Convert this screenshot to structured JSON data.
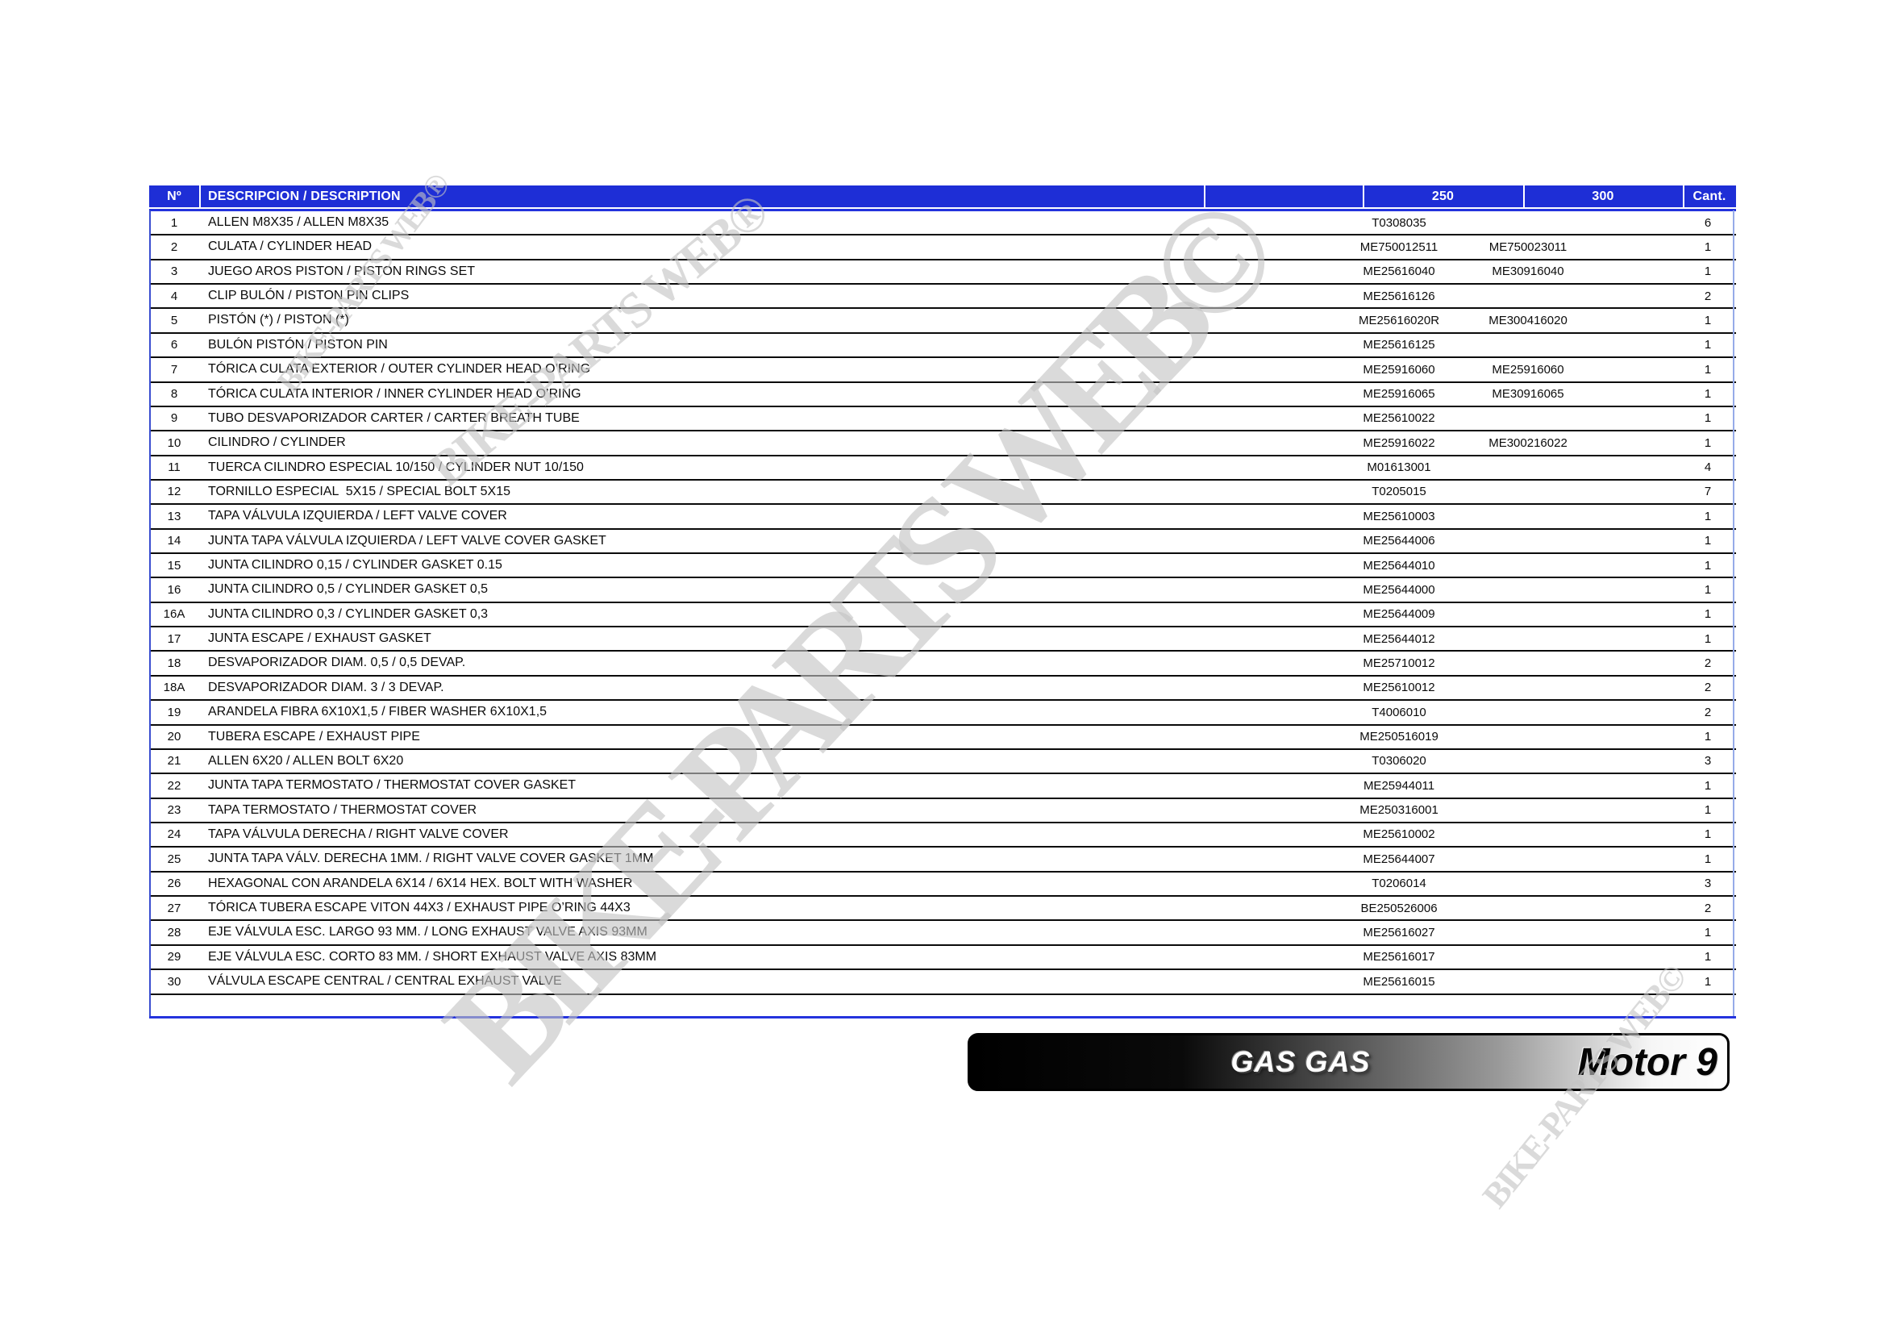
{
  "header": {
    "col_num": "Nº",
    "col_desc": "DESCRIPCION / DESCRIPTION",
    "col_250": "250",
    "col_300": "300",
    "col_qty": "Cant."
  },
  "rows": [
    {
      "num": "1",
      "desc": "ALLEN M8X35 / ALLEN M8X35",
      "p250": "T0308035",
      "p300": "",
      "qty": "6"
    },
    {
      "num": "2",
      "desc": "CULATA / CYLINDER HEAD",
      "p250": "ME750012511",
      "p300": "ME750023011",
      "qty": "1"
    },
    {
      "num": "3",
      "desc": "JUEGO AROS PISTON / PISTON RINGS SET",
      "p250": "ME25616040",
      "p300": "ME30916040",
      "qty": "1"
    },
    {
      "num": "4",
      "desc": "CLIP BULÓN / PISTON PIN CLIPS",
      "p250": "ME25616126",
      "p300": "",
      "qty": "2"
    },
    {
      "num": "5",
      "desc": "PISTÓN (*) / PISTON (*)",
      "p250": "ME25616020R",
      "p300": "ME300416020",
      "qty": "1"
    },
    {
      "num": "6",
      "desc": "BULÓN PISTÓN / PISTON PIN",
      "p250": "ME25616125",
      "p300": "",
      "qty": "1"
    },
    {
      "num": "7",
      "desc": "TÓRICA CULATA EXTERIOR / OUTER CYLINDER HEAD O’RING",
      "p250": "ME25916060",
      "p300": "ME25916060",
      "qty": "1"
    },
    {
      "num": "8",
      "desc": "TÓRICA CULATA INTERIOR / INNER CYLINDER HEAD O’RING",
      "p250": "ME25916065",
      "p300": "ME30916065",
      "qty": "1"
    },
    {
      "num": "9",
      "desc": "TUBO DESVAPORIZADOR CARTER / CARTER BREATH TUBE",
      "p250": "ME25610022",
      "p300": "",
      "qty": "1"
    },
    {
      "num": "10",
      "desc": "CILINDRO / CYLINDER",
      "p250": "ME25916022",
      "p300": "ME300216022",
      "qty": "1"
    },
    {
      "num": "11",
      "desc": "TUERCA CILINDRO ESPECIAL 10/150 / CYLINDER NUT 10/150",
      "p250": "M01613001",
      "p300": "",
      "qty": "4"
    },
    {
      "num": "12",
      "desc": "TORNILLO ESPECIAL  5X15 / SPECIAL BOLT 5X15",
      "p250": "T0205015",
      "p300": "",
      "qty": "7"
    },
    {
      "num": "13",
      "desc": "TAPA VÁLVULA IZQUIERDA / LEFT VALVE COVER",
      "p250": "ME25610003",
      "p300": "",
      "qty": "1"
    },
    {
      "num": "14",
      "desc": "JUNTA TAPA VÁLVULA IZQUIERDA / LEFT VALVE COVER GASKET",
      "p250": "ME25644006",
      "p300": "",
      "qty": "1"
    },
    {
      "num": "15",
      "desc": "JUNTA CILINDRO 0,15 / CYLINDER GASKET 0.15",
      "p250": "ME25644010",
      "p300": "",
      "qty": "1"
    },
    {
      "num": "16",
      "desc": "JUNTA CILINDRO 0,5 / CYLINDER GASKET 0,5",
      "p250": "ME25644000",
      "p300": "",
      "qty": "1"
    },
    {
      "num": "16A",
      "desc": "JUNTA CILINDRO 0,3 / CYLINDER GASKET 0,3",
      "p250": "ME25644009",
      "p300": "",
      "qty": "1"
    },
    {
      "num": "17",
      "desc": "JUNTA ESCAPE / EXHAUST GASKET",
      "p250": "ME25644012",
      "p300": "",
      "qty": "1"
    },
    {
      "num": "18",
      "desc": "DESVAPORIZADOR DIAM. 0,5 / 0,5 DEVAP.",
      "p250": "ME25710012",
      "p300": "",
      "qty": "2"
    },
    {
      "num": "18A",
      "desc": "DESVAPORIZADOR DIAM. 3 / 3 DEVAP.",
      "p250": "ME25610012",
      "p300": "",
      "qty": "2"
    },
    {
      "num": "19",
      "desc": "ARANDELA FIBRA 6X10X1,5 / FIBER WASHER 6X10X1,5",
      "p250": "T4006010",
      "p300": "",
      "qty": "2"
    },
    {
      "num": "20",
      "desc": "TUBERA ESCAPE / EXHAUST PIPE",
      "p250": "ME250516019",
      "p300": "",
      "qty": "1"
    },
    {
      "num": "21",
      "desc": "ALLEN 6X20 / ALLEN BOLT 6X20",
      "p250": "T0306020",
      "p300": "",
      "qty": "3"
    },
    {
      "num": "22",
      "desc": "JUNTA TAPA TERMOSTATO / THERMOSTAT COVER GASKET",
      "p250": "ME25944011",
      "p300": "",
      "qty": "1"
    },
    {
      "num": "23",
      "desc": "TAPA TERMOSTATO / THERMOSTAT COVER",
      "p250": "ME250316001",
      "p300": "",
      "qty": "1"
    },
    {
      "num": "24",
      "desc": "TAPA VÁLVULA DERECHA / RIGHT VALVE COVER",
      "p250": "ME25610002",
      "p300": "",
      "qty": "1"
    },
    {
      "num": "25",
      "desc": "JUNTA TAPA VÁLV. DERECHA 1MM. / RIGHT VALVE COVER GASKET 1MM",
      "p250": "ME25644007",
      "p300": "",
      "qty": "1"
    },
    {
      "num": "26",
      "desc": "HEXAGONAL CON ARANDELA 6X14 / 6X14 HEX. BOLT WITH WASHER",
      "p250": "T0206014",
      "p300": "",
      "qty": "3"
    },
    {
      "num": "27",
      "desc": "TÓRICA TUBERA ESCAPE VITON 44X3 / EXHAUST PIPE O’RING 44X3",
      "p250": "BE250526006",
      "p300": "",
      "qty": "2"
    },
    {
      "num": "28",
      "desc": "EJE VÁLVULA ESC. LARGO 93 MM. / LONG EXHAUST VALVE AXIS 93MM",
      "p250": "ME25616027",
      "p300": "",
      "qty": "1"
    },
    {
      "num": "29",
      "desc": "EJE VÁLVULA ESC. CORTO 83 MM. / SHORT EXHAUST VALVE AXIS 83MM",
      "p250": "ME25616017",
      "p300": "",
      "qty": "1"
    },
    {
      "num": "30",
      "desc": "VÁLVULA ESCAPE CENTRAL / CENTRAL EXHAUST VALVE",
      "p250": "ME25616015",
      "p300": "",
      "qty": "1"
    }
  ],
  "footer": {
    "brand": "GAS GAS",
    "model": "Motor 9"
  },
  "watermarks": {
    "small_top_1": "BIKE-PARTS WEB®",
    "small_top_2": "BIKE-PARTS WEB®",
    "giant": "BIKE-PARTS WEB©",
    "small_bottom": "BIKE-PARTS WEB©"
  },
  "colors": {
    "header_bg": "#1e2ed6",
    "header_text": "#ffffff",
    "row_line": "#0a0a0a",
    "table_bottom_border": "#2433dd",
    "table_left_border": "#3a4ed0",
    "table_right_border": "#96abe8",
    "watermark_gray": "#c3c3c3"
  }
}
